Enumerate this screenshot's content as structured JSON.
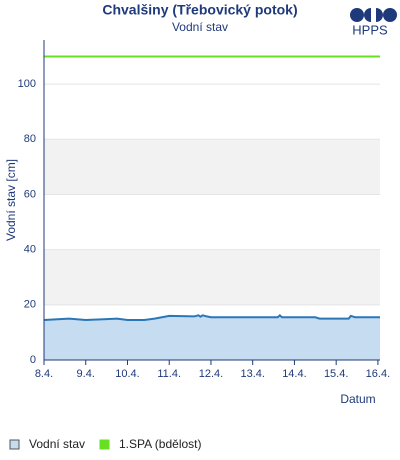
{
  "chart_data": {
    "type": "line",
    "title": "Chvalšiny (Třebovický potok)",
    "subtitle": "Vodní stav",
    "logo": "HPPS",
    "y_label": "Vodní stav [cm]",
    "x_label": "Datum",
    "ylim": [
      0,
      116
    ],
    "yticks": [
      0,
      20,
      40,
      60,
      80,
      100
    ],
    "xlim": [
      8,
      16.05
    ],
    "xticks": [
      {
        "value": 8,
        "label": "8.4."
      },
      {
        "value": 9,
        "label": "9.4."
      },
      {
        "value": 10,
        "label": "10.4."
      },
      {
        "value": 11,
        "label": "11.4."
      },
      {
        "value": 12,
        "label": "12.4."
      },
      {
        "value": 13,
        "label": "13.4."
      },
      {
        "value": 14,
        "label": "14.4."
      },
      {
        "value": 15,
        "label": "15.4."
      },
      {
        "value": 16,
        "label": "16.4."
      }
    ],
    "bands": true,
    "series": [
      {
        "name": "Vodní stav",
        "color": "#2a77b8",
        "fill": "#c6dcf1",
        "x": [
          8,
          8.6,
          9.0,
          9.5,
          9.75,
          10.0,
          10.4,
          10.65,
          11.0,
          11.6,
          11.7,
          11.75,
          11.8,
          11.9,
          12.0,
          13.6,
          13.65,
          13.7,
          14.5,
          14.6,
          15.3,
          15.35,
          15.45,
          16.05
        ],
        "values": [
          14.5,
          15,
          14.5,
          14.8,
          15,
          14.5,
          14.5,
          15,
          16,
          15.8,
          16.2,
          15.7,
          16.2,
          15.8,
          15.5,
          15.5,
          16.2,
          15.5,
          15.5,
          15,
          15,
          16,
          15.5,
          15.5
        ]
      },
      {
        "name": "1.SPA (bdělost)",
        "color": "#66e020",
        "x": [
          8,
          16.05
        ],
        "values": [
          110,
          110
        ]
      }
    ]
  }
}
